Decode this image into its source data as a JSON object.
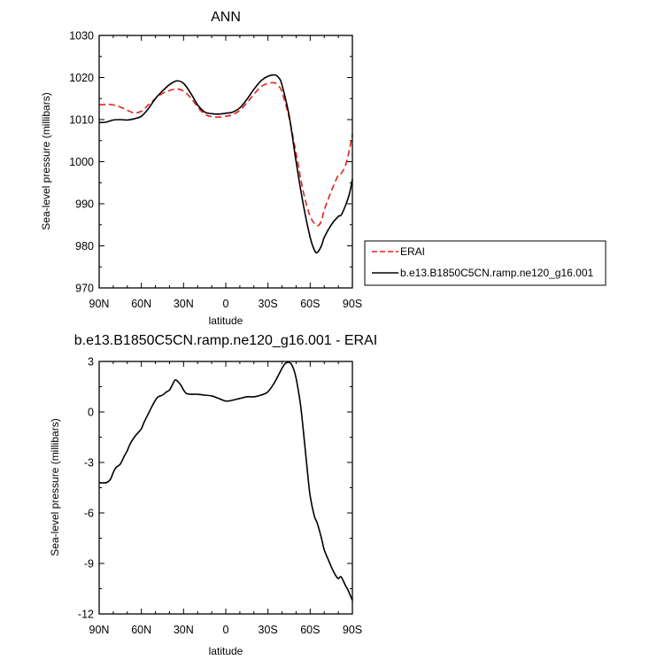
{
  "chart_data": [
    {
      "type": "line",
      "title": "ANN",
      "xlabel": "latitude",
      "ylabel": "Sea-level pressure (millibars)",
      "xlim": [
        90,
        -90
      ],
      "ylim": [
        970,
        1030
      ],
      "x_ticks": [
        90,
        60,
        30,
        0,
        -30,
        -60,
        -90
      ],
      "x_tick_labels": [
        "90N",
        "60N",
        "30N",
        "0",
        "30S",
        "60S",
        "90S"
      ],
      "y_ticks": [
        970,
        980,
        990,
        1000,
        1010,
        1020,
        1030
      ],
      "y_tick_labels": [
        "970",
        "980",
        "990",
        "1000",
        "1010",
        "1020",
        "1030"
      ],
      "legend": {
        "placement": "right"
      },
      "grid": false,
      "series": [
        {
          "name": "ERAI",
          "color": "#e8201a",
          "dash": true,
          "x": [
            90,
            85,
            80,
            75,
            70,
            65,
            60,
            55,
            50,
            45,
            40,
            35,
            30,
            25,
            20,
            15,
            10,
            5,
            0,
            -5,
            -10,
            -15,
            -20,
            -25,
            -30,
            -35,
            -38,
            -40,
            -45,
            -50,
            -55,
            -60,
            -65,
            -68,
            -70,
            -75,
            -80,
            -82,
            -85,
            -88,
            -90
          ],
          "y": [
            1013.5,
            1013.6,
            1013.5,
            1013.0,
            1012.2,
            1011.6,
            1012.0,
            1013.5,
            1015.0,
            1016.2,
            1016.9,
            1017.3,
            1016.8,
            1015.2,
            1013.0,
            1011.3,
            1010.7,
            1010.6,
            1010.8,
            1011.2,
            1012.2,
            1014.0,
            1016.0,
            1017.8,
            1018.6,
            1018.7,
            1017.8,
            1016.5,
            1010.5,
            1002.0,
            993.0,
            987.0,
            984.8,
            986.0,
            988.5,
            993.0,
            996.8,
            997.2,
            999.0,
            1003.0,
            1006.5
          ]
        },
        {
          "name": "b.e13.B1850C5CN.ramp.ne120_g16.001",
          "color": "#000000",
          "dash": false,
          "x": [
            90,
            85,
            80,
            75,
            70,
            65,
            60,
            55,
            50,
            45,
            40,
            35,
            30,
            25,
            20,
            15,
            10,
            5,
            0,
            -5,
            -10,
            -15,
            -20,
            -25,
            -30,
            -35,
            -38,
            -40,
            -45,
            -50,
            -55,
            -60,
            -63,
            -65,
            -68,
            -70,
            -75,
            -80,
            -82,
            -85,
            -88,
            -90
          ],
          "y": [
            1009.3,
            1009.4,
            1009.9,
            1010.0,
            1009.9,
            1010.2,
            1010.8,
            1012.6,
            1015.0,
            1016.8,
            1018.3,
            1019.2,
            1018.6,
            1016.3,
            1013.5,
            1011.8,
            1011.4,
            1011.3,
            1011.5,
            1011.8,
            1012.8,
            1014.8,
            1017.2,
            1019.2,
            1020.3,
            1020.6,
            1019.8,
            1018.2,
            1011.0,
            1000.0,
            990.0,
            982.0,
            979.0,
            978.4,
            980.0,
            982.0,
            985.0,
            987.0,
            987.3,
            989.5,
            992.5,
            995.8
          ]
        }
      ]
    },
    {
      "type": "line",
      "title": "b.e13.B1850C5CN.ramp.ne120_g16.001 - ERAI",
      "xlabel": "latitude",
      "ylabel": "Sea-level pressure (millibars)",
      "xlim": [
        90,
        -90
      ],
      "ylim": [
        -12,
        3
      ],
      "x_ticks": [
        90,
        60,
        30,
        0,
        -30,
        -60,
        -90
      ],
      "x_tick_labels": [
        "90N",
        "60N",
        "30N",
        "0",
        "30S",
        "60S",
        "90S"
      ],
      "y_ticks": [
        -12,
        -9,
        -6,
        -3,
        0,
        3
      ],
      "y_tick_labels": [
        "-12",
        "-9",
        "-6",
        "-3",
        "0",
        "3"
      ],
      "grid": false,
      "series": [
        {
          "color": "#000000",
          "dash": false,
          "x": [
            90,
            85,
            82,
            80,
            78,
            75,
            72,
            70,
            68,
            65,
            62,
            60,
            58,
            55,
            52,
            50,
            48,
            45,
            42,
            40,
            38,
            36,
            34,
            32,
            30,
            28,
            25,
            20,
            15,
            10,
            5,
            2,
            0,
            -2,
            -5,
            -10,
            -15,
            -20,
            -25,
            -30,
            -35,
            -40,
            -42,
            -44,
            -46,
            -48,
            -50,
            -53,
            -55,
            -58,
            -60,
            -63,
            -65,
            -68,
            -70,
            -73,
            -75,
            -78,
            -80,
            -82,
            -85,
            -87,
            -90
          ],
          "y": [
            -4.2,
            -4.2,
            -4.0,
            -3.6,
            -3.3,
            -3.1,
            -2.6,
            -2.3,
            -1.9,
            -1.5,
            -1.2,
            -1.0,
            -0.6,
            -0.1,
            0.4,
            0.7,
            0.9,
            1.0,
            1.2,
            1.3,
            1.6,
            1.9,
            1.8,
            1.6,
            1.3,
            1.1,
            1.05,
            1.05,
            1.0,
            0.95,
            0.8,
            0.7,
            0.65,
            0.65,
            0.7,
            0.8,
            0.9,
            0.9,
            1.0,
            1.2,
            1.8,
            2.6,
            2.85,
            2.95,
            2.9,
            2.6,
            2.0,
            0.5,
            -1.0,
            -3.5,
            -5.0,
            -6.2,
            -6.6,
            -7.5,
            -8.2,
            -8.8,
            -9.2,
            -9.7,
            -9.9,
            -9.8,
            -10.3,
            -10.6,
            -11.2
          ]
        }
      ]
    }
  ]
}
